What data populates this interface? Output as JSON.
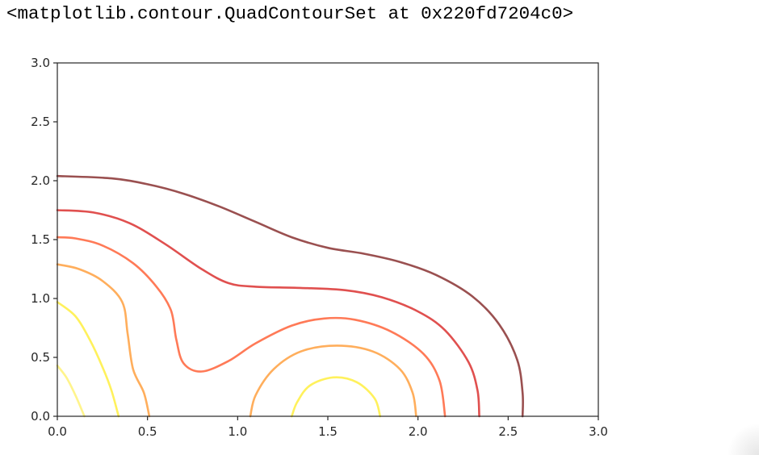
{
  "output": {
    "repr_text": "<matplotlib.contour.QuadContourSet at 0x220fd7204c0>"
  },
  "chart_data": {
    "type": "contour",
    "title": "",
    "xlabel": "",
    "ylabel": "",
    "xlim": [
      0.0,
      3.0
    ],
    "ylim": [
      0.0,
      3.0
    ],
    "grid": false,
    "x_ticks": [
      "0.0",
      "0.5",
      "1.0",
      "1.5",
      "2.0",
      "2.5",
      "3.0"
    ],
    "y_ticks": [
      "0.0",
      "0.5",
      "1.0",
      "1.5",
      "2.0",
      "2.5",
      "3.0"
    ],
    "colormap": "autumn_r",
    "levels": [
      {
        "color": "#fff48c",
        "segments": [
          [
            [
              0.0,
              0.43
            ],
            [
              0.05,
              0.33
            ],
            [
              0.1,
              0.18
            ],
            [
              0.15,
              0.0
            ]
          ]
        ]
      },
      {
        "color": "#fff15c",
        "segments": [
          [
            [
              0.0,
              0.97
            ],
            [
              0.1,
              0.85
            ],
            [
              0.18,
              0.65
            ],
            [
              0.25,
              0.42
            ],
            [
              0.3,
              0.22
            ],
            [
              0.34,
              0.0
            ]
          ],
          [
            [
              1.3,
              0.0
            ],
            [
              1.33,
              0.12
            ],
            [
              1.4,
              0.26
            ],
            [
              1.53,
              0.33
            ],
            [
              1.66,
              0.29
            ],
            [
              1.76,
              0.15
            ],
            [
              1.79,
              0.0
            ]
          ]
        ]
      },
      {
        "color": "#ffae5c",
        "segments": [
          [
            [
              0.0,
              1.29
            ],
            [
              0.12,
              1.25
            ],
            [
              0.25,
              1.15
            ],
            [
              0.36,
              0.97
            ],
            [
              0.39,
              0.7
            ],
            [
              0.42,
              0.4
            ],
            [
              0.48,
              0.2
            ],
            [
              0.51,
              0.0
            ]
          ],
          [
            [
              1.07,
              0.0
            ],
            [
              1.1,
              0.18
            ],
            [
              1.2,
              0.4
            ],
            [
              1.35,
              0.55
            ],
            [
              1.55,
              0.6
            ],
            [
              1.75,
              0.55
            ],
            [
              1.9,
              0.4
            ],
            [
              1.97,
              0.2
            ],
            [
              1.99,
              0.0
            ]
          ]
        ]
      },
      {
        "color": "#ff7a57",
        "segments": [
          [
            [
              0.0,
              1.52
            ],
            [
              0.1,
              1.51
            ],
            [
              0.25,
              1.45
            ],
            [
              0.42,
              1.3
            ],
            [
              0.55,
              1.1
            ],
            [
              0.63,
              0.9
            ],
            [
              0.66,
              0.65
            ],
            [
              0.7,
              0.45
            ],
            [
              0.8,
              0.38
            ],
            [
              0.95,
              0.47
            ],
            [
              1.1,
              0.62
            ],
            [
              1.3,
              0.77
            ],
            [
              1.48,
              0.83
            ],
            [
              1.65,
              0.82
            ],
            [
              1.85,
              0.72
            ],
            [
              2.03,
              0.53
            ],
            [
              2.12,
              0.3
            ],
            [
              2.15,
              0.0
            ]
          ]
        ]
      },
      {
        "color": "#e0504f",
        "segments": [
          [
            [
              0.0,
              1.75
            ],
            [
              0.2,
              1.73
            ],
            [
              0.4,
              1.64
            ],
            [
              0.6,
              1.46
            ],
            [
              0.8,
              1.25
            ],
            [
              0.95,
              1.13
            ],
            [
              1.1,
              1.1
            ],
            [
              1.35,
              1.09
            ],
            [
              1.6,
              1.07
            ],
            [
              1.8,
              1.01
            ],
            [
              2.0,
              0.89
            ],
            [
              2.15,
              0.73
            ],
            [
              2.28,
              0.46
            ],
            [
              2.33,
              0.22
            ],
            [
              2.34,
              0.0
            ]
          ]
        ]
      },
      {
        "color": "#9a5050",
        "segments": [
          [
            [
              0.0,
              2.04
            ],
            [
              0.3,
              2.02
            ],
            [
              0.5,
              1.97
            ],
            [
              0.7,
              1.89
            ],
            [
              0.9,
              1.78
            ],
            [
              1.1,
              1.65
            ],
            [
              1.3,
              1.52
            ],
            [
              1.5,
              1.43
            ],
            [
              1.7,
              1.38
            ],
            [
              1.9,
              1.31
            ],
            [
              2.1,
              1.2
            ],
            [
              2.3,
              1.02
            ],
            [
              2.45,
              0.78
            ],
            [
              2.55,
              0.48
            ],
            [
              2.58,
              0.2
            ],
            [
              2.58,
              0.0
            ]
          ]
        ]
      }
    ]
  }
}
